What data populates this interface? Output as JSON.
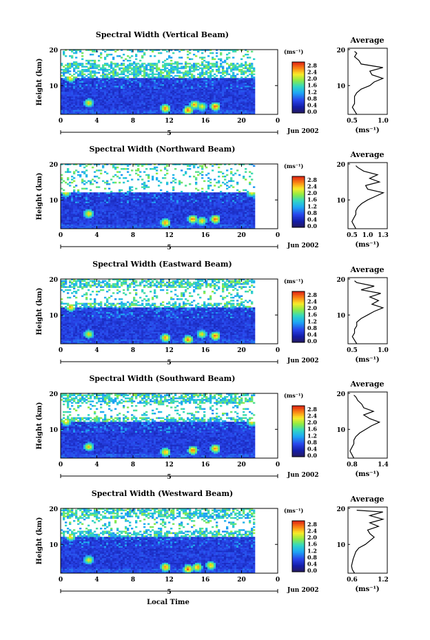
{
  "figure": {
    "xlabel": "Local Time",
    "date_label": "Jun 2002",
    "day_label": "5",
    "x_ticks": [
      "0",
      "4",
      "8",
      "12",
      "16",
      "20",
      "0"
    ],
    "y_ticks": [
      "20",
      "10"
    ],
    "ylabel": "Height (km)",
    "colorbar_unit": "(ms⁻¹)",
    "colorbar_ticks": [
      "2.8",
      "2.4",
      "2.0",
      "1.6",
      "1.2",
      "0.8",
      "0.4",
      "0.0"
    ],
    "profile_title": "Average",
    "profile_xlabel": "(ms⁻¹)",
    "profile_y_ticks": [
      "20",
      "10"
    ]
  },
  "chart_data": [
    {
      "type": "heatmap",
      "title": "Spectral Width (Vertical Beam)",
      "xlabel": "",
      "ylabel": "Height (km)",
      "xlim": [
        0,
        24
      ],
      "ylim": [
        2,
        20
      ],
      "data_end_hour": 21.3,
      "colorbar": {
        "unit": "(ms⁻¹)",
        "range": [
          0.0,
          3.0
        ]
      },
      "features": {
        "tropopause_km": 12,
        "gap": [
          16,
          19.5
        ],
        "top": 20,
        "hotspots": [
          [
            1,
            12,
            2.6
          ],
          [
            3,
            5,
            2.4
          ],
          [
            11.5,
            3.5,
            2.8
          ],
          [
            14,
            3,
            2.9
          ],
          [
            14.7,
            4.5,
            2.7
          ],
          [
            15.5,
            4,
            2.4
          ],
          [
            17,
            4,
            2.9
          ]
        ]
      },
      "average_profile": {
        "title": "Average",
        "x_ticks": [
          "0.5",
          "1.0"
        ],
        "xlim": [
          0.4,
          1.3
        ],
        "height_km": [
          2,
          3,
          4,
          5,
          6,
          7,
          8,
          9,
          10,
          11,
          12,
          13,
          14,
          15,
          16,
          17,
          18,
          19,
          19.5
        ],
        "width_ms": [
          0.6,
          0.55,
          0.5,
          0.55,
          0.55,
          0.55,
          0.6,
          0.7,
          0.9,
          1.0,
          1.2,
          0.95,
          0.9,
          1.2,
          0.7,
          0.65,
          0.55,
          0.6,
          0.55
        ]
      }
    },
    {
      "type": "heatmap",
      "title": "Spectral Width (Northward Beam)",
      "xlabel": "",
      "ylabel": "Height (km)",
      "xlim": [
        0,
        24
      ],
      "ylim": [
        2,
        20
      ],
      "data_end_hour": 21.3,
      "colorbar": {
        "unit": "(ms⁻¹)",
        "range": [
          0.0,
          3.0
        ]
      },
      "features": {
        "tropopause_km": 12,
        "gap": [
          12,
          19.5
        ],
        "top": 20,
        "hotspots": [
          [
            0.5,
            12,
            2.6
          ],
          [
            3,
            6,
            2.5
          ],
          [
            11.5,
            3.5,
            2.8
          ],
          [
            14.5,
            4.5,
            2.8
          ],
          [
            15.5,
            4,
            2.5
          ],
          [
            17,
            4.5,
            2.9
          ],
          [
            21,
            12,
            2.6
          ]
        ]
      },
      "average_profile": {
        "title": "Average",
        "x_ticks": [
          "0.5",
          "1.0",
          "1.3"
        ],
        "xlim": [
          0.4,
          1.4
        ],
        "height_km": [
          2,
          3,
          4,
          5,
          6,
          7,
          8,
          9,
          10,
          11,
          12,
          13,
          14,
          15,
          16,
          17,
          18,
          19,
          19.5
        ],
        "width_ms": [
          0.6,
          0.55,
          0.5,
          0.55,
          0.6,
          0.6,
          0.65,
          0.75,
          0.9,
          1.1,
          1.3,
          0.9,
          0.85,
          1.2,
          0.95,
          1.15,
          0.8,
          0.65,
          0.6
        ]
      }
    },
    {
      "type": "heatmap",
      "title": "Spectral Width (Eastward Beam)",
      "xlabel": "",
      "ylabel": "Height (km)",
      "xlim": [
        0,
        24
      ],
      "ylim": [
        2,
        20
      ],
      "data_end_hour": 21.3,
      "colorbar": {
        "unit": "(ms⁻¹)",
        "range": [
          0.0,
          3.0
        ]
      },
      "features": {
        "tropopause_km": 12,
        "gap": [
          13,
          17.5
        ],
        "top": 20,
        "hotspots": [
          [
            1,
            12,
            2.7
          ],
          [
            3,
            4.5,
            2.4
          ],
          [
            11.5,
            3.5,
            2.7
          ],
          [
            14,
            3,
            2.8
          ],
          [
            15.5,
            4.5,
            2.4
          ],
          [
            17,
            4,
            2.9
          ]
        ]
      },
      "average_profile": {
        "title": "Average",
        "x_ticks": [
          "0.5",
          "1.0"
        ],
        "xlim": [
          0.4,
          1.3
        ],
        "height_km": [
          2,
          3,
          4,
          5,
          6,
          7,
          8,
          9,
          10,
          11,
          12,
          13,
          14,
          15,
          16,
          17,
          18,
          19,
          19.5
        ],
        "width_ms": [
          0.6,
          0.55,
          0.5,
          0.55,
          0.55,
          0.6,
          0.6,
          0.7,
          0.85,
          1.0,
          1.2,
          0.95,
          1.1,
          0.9,
          1.15,
          0.7,
          1.0,
          0.6,
          0.55
        ]
      }
    },
    {
      "type": "heatmap",
      "title": "Spectral Width (Southward Beam)",
      "xlabel": "",
      "ylabel": "Height (km)",
      "xlim": [
        0,
        24
      ],
      "ylim": [
        2,
        20
      ],
      "data_end_hour": 21.3,
      "colorbar": {
        "unit": "(ms⁻¹)",
        "range": [
          0.0,
          3.0
        ]
      },
      "features": {
        "tropopause_km": 12,
        "gap": [
          13,
          17
        ],
        "top": 20,
        "hotspots": [
          [
            0.5,
            12,
            2.6
          ],
          [
            3,
            5,
            2.5
          ],
          [
            11.5,
            3.5,
            2.7
          ],
          [
            14.5,
            4,
            2.9
          ],
          [
            17,
            4.5,
            2.8
          ],
          [
            21,
            12,
            2.6
          ]
        ]
      },
      "average_profile": {
        "title": "Average",
        "x_ticks": [
          "0.8",
          "1.4"
        ],
        "xlim": [
          0.6,
          1.6
        ],
        "height_km": [
          2,
          3,
          4,
          5,
          6,
          7,
          8,
          9,
          10,
          11,
          12,
          13,
          14,
          15,
          16,
          17,
          18,
          19,
          19.5
        ],
        "width_ms": [
          0.75,
          0.7,
          0.65,
          0.7,
          0.75,
          0.75,
          0.8,
          0.9,
          1.05,
          1.2,
          1.4,
          1.15,
          1.0,
          1.25,
          1.0,
          0.95,
          0.85,
          0.8,
          0.75
        ]
      }
    },
    {
      "type": "heatmap",
      "title": "Spectral Width (Westward Beam)",
      "xlabel": "",
      "ylabel": "Height (km)",
      "xlim": [
        0,
        24
      ],
      "ylim": [
        2,
        20
      ],
      "data_end_hour": 21.3,
      "colorbar": {
        "unit": "(ms⁻¹)",
        "range": [
          0.0,
          3.0
        ]
      },
      "features": {
        "tropopause_km": 12,
        "gap": [
          13.5,
          17
        ],
        "top": 20,
        "hotspots": [
          [
            1,
            12,
            2.6
          ],
          [
            3,
            5.5,
            2.4
          ],
          [
            11.5,
            3.5,
            2.8
          ],
          [
            14,
            3,
            2.9
          ],
          [
            15,
            3.5,
            2.7
          ],
          [
            16.5,
            4,
            2.6
          ]
        ]
      },
      "average_profile": {
        "title": "Average",
        "x_ticks": [
          "0.6",
          "1.2"
        ],
        "xlim": [
          0.5,
          1.4
        ],
        "height_km": [
          2,
          3,
          4,
          5,
          6,
          7,
          8,
          9,
          10,
          11,
          12,
          13,
          14,
          15,
          16,
          17,
          18,
          19,
          19.5
        ],
        "width_ms": [
          0.65,
          0.6,
          0.58,
          0.6,
          0.62,
          0.65,
          0.68,
          0.75,
          0.9,
          1.0,
          1.1,
          1.0,
          0.95,
          1.2,
          1.0,
          1.3,
          1.0,
          1.3,
          0.7
        ]
      }
    }
  ]
}
